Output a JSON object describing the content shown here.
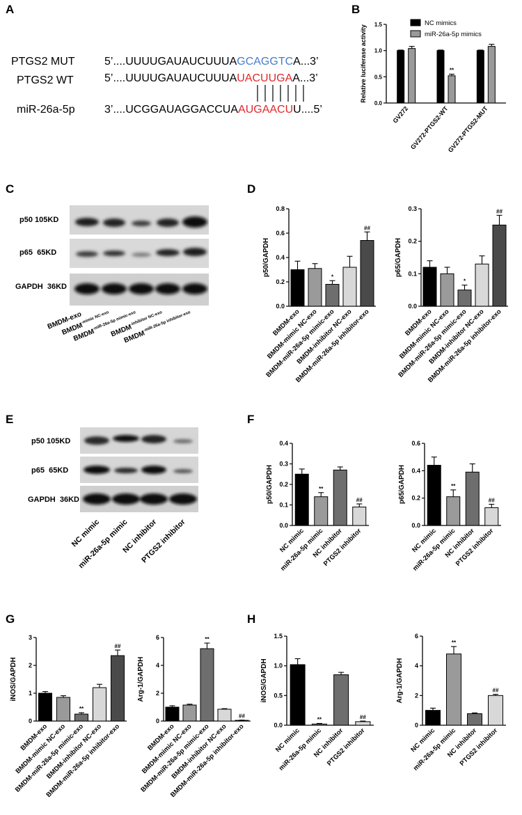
{
  "panels": {
    "A": "A",
    "B": "B",
    "C": "C",
    "D": "D",
    "E": "E",
    "F": "F",
    "G": "G",
    "H": "H"
  },
  "panelA": {
    "rows": [
      {
        "label": "PTGS2 MUT",
        "prefix": "5’....UUUUGAUAUCUUUA",
        "site": "GCAGGTC",
        "suffix": "A...3’",
        "color": "#4a7cc9"
      },
      {
        "label": "PTGS2 WT",
        "prefix": "5’....UUUUGAUAUCUUUA",
        "site": "UACUUGA",
        "suffix": "A...3’",
        "color": "#e0282e"
      },
      {
        "label": "miR-26a-5p",
        "prefix": "3’....UCGGAUAGGACCUA",
        "site": "AUGAACU",
        "suffix": "U....5’",
        "color": "#e0282e"
      }
    ]
  },
  "panelC": {
    "bands": [
      {
        "label": "p50",
        "size": "105KD"
      },
      {
        "label": "p65",
        "size": "65KD"
      },
      {
        "label": "GAPDH",
        "size": "36KD"
      }
    ],
    "lanes": [
      {
        "main": "BMDM-exo",
        "sup": ""
      },
      {
        "main": "BMDM",
        "sup": "-mimic NC-exo"
      },
      {
        "main": "BMDM",
        "sup": "-miR-26a-5p mimic-exo"
      },
      {
        "main": "BMDM",
        "sup": "-inhibitor NC-exo"
      },
      {
        "main": "BMDM",
        "sup": "-miR-26a-5p inhibitor-exo"
      }
    ]
  },
  "panelE": {
    "bands": [
      {
        "label": "p50",
        "size": "105KD"
      },
      {
        "label": "p65",
        "size": "65KD"
      },
      {
        "label": "GAPDH",
        "size": "36KD"
      }
    ],
    "lanes": [
      "NC mimic",
      "miR-26a-5p mimic",
      "NC inhibitor",
      "PTGS2  inhibitor"
    ]
  },
  "chart_data": [
    {
      "id": "B",
      "type": "bar",
      "categories": [
        "GV272",
        "GV272-PTGS2-WT",
        "GV272-PTGS2-MUT"
      ],
      "series": [
        {
          "name": "NC mimics",
          "values": [
            1.0,
            1.0,
            1.0
          ],
          "errors": [
            0.01,
            0.01,
            0.01
          ],
          "color": "#000000"
        },
        {
          "name": "miR-26a-5p mimics",
          "values": [
            1.04,
            0.52,
            1.08
          ],
          "errors": [
            0.04,
            0.03,
            0.04
          ],
          "color": "#9a9a9a"
        }
      ],
      "annotations": [
        {
          "category": 1,
          "series": 1,
          "text": "**"
        }
      ],
      "ylabel": "Relative luciferase activity",
      "ylim": [
        0,
        1.5
      ],
      "yticks": [
        "0.0",
        "0.5",
        "1.0",
        "1.5"
      ],
      "legend": "top-right"
    },
    {
      "id": "D1",
      "type": "bar",
      "categories": [
        "BMDM-exo",
        "BMDM-mimic NC-exo",
        "BMDM-miR-26a-5p mimic-exo",
        "BMDM-inhibitor NC-exo",
        "BMDM-miR-26a-5p inhibitor-exo"
      ],
      "values": [
        0.3,
        0.31,
        0.18,
        0.32,
        0.54
      ],
      "errors": [
        0.07,
        0.04,
        0.03,
        0.09,
        0.07
      ],
      "colors": [
        "#000000",
        "#9a9a9a",
        "#6e6e6e",
        "#d8d8d8",
        "#4a4a4a"
      ],
      "annotations": [
        "",
        "",
        "*",
        "",
        "##"
      ],
      "ylabel": "p50/GAPDH",
      "ylim": [
        0,
        0.8
      ],
      "yticks": [
        "0.0",
        "0.2",
        "0.4",
        "0.6",
        "0.8"
      ]
    },
    {
      "id": "D2",
      "type": "bar",
      "categories": [
        "BMDM-exo",
        "BMDM-mimic NC-exo",
        "BMDM-miR-26a-5p mimic-exo",
        "BMDM-inhibitor NC-exo",
        "BMDM-miR-26a-5p inhibitor-exo"
      ],
      "values": [
        0.12,
        0.1,
        0.05,
        0.13,
        0.25
      ],
      "errors": [
        0.02,
        0.02,
        0.015,
        0.025,
        0.03
      ],
      "colors": [
        "#000000",
        "#9a9a9a",
        "#6e6e6e",
        "#d8d8d8",
        "#4a4a4a"
      ],
      "annotations": [
        "",
        "",
        "*",
        "",
        "##"
      ],
      "ylabel": "p65/GAPDH",
      "ylim": [
        0,
        0.3
      ],
      "yticks": [
        "0.0",
        "0.1",
        "0.2",
        "0.3"
      ]
    },
    {
      "id": "F1",
      "type": "bar",
      "categories": [
        "NC mimic",
        "miR-26a-5p mimic",
        "NC inhibitor",
        "PTGS2 inhibitor"
      ],
      "values": [
        0.25,
        0.14,
        0.27,
        0.09
      ],
      "errors": [
        0.025,
        0.02,
        0.015,
        0.015
      ],
      "colors": [
        "#000000",
        "#9a9a9a",
        "#6e6e6e",
        "#d8d8d8"
      ],
      "annotations": [
        "",
        "**",
        "",
        "##"
      ],
      "ylabel": "p50/GAPDH",
      "ylim": [
        0,
        0.4
      ],
      "yticks": [
        "0.0",
        "0.1",
        "0.2",
        "0.3",
        "0.4"
      ]
    },
    {
      "id": "F2",
      "type": "bar",
      "categories": [
        "NC mimic",
        "miR-26a-5p mimic",
        "NC inhibitor",
        "PTGS2 inhibitor"
      ],
      "values": [
        0.44,
        0.21,
        0.39,
        0.13
      ],
      "errors": [
        0.06,
        0.05,
        0.06,
        0.025
      ],
      "colors": [
        "#000000",
        "#9a9a9a",
        "#6e6e6e",
        "#d8d8d8"
      ],
      "annotations": [
        "",
        "**",
        "",
        "##"
      ],
      "ylabel": "p65/GAPDH",
      "ylim": [
        0,
        0.6
      ],
      "yticks": [
        "0.0",
        "0.2",
        "0.4",
        "0.6"
      ]
    },
    {
      "id": "G1",
      "type": "bar",
      "categories": [
        "BMDM-exo",
        "BMDM-mimic NC-exo",
        "BMDM-miR-26a-5p mimic-exo",
        "BMDM-inhibitor NC-exo",
        "BMDM-miR-26a-5p inhibitor-exo"
      ],
      "values": [
        1.0,
        0.85,
        0.25,
        1.2,
        2.35
      ],
      "errors": [
        0.06,
        0.06,
        0.05,
        0.12,
        0.2
      ],
      "colors": [
        "#000000",
        "#9a9a9a",
        "#6e6e6e",
        "#d8d8d8",
        "#4a4a4a"
      ],
      "annotations": [
        "",
        "",
        "**",
        "",
        "##"
      ],
      "ylabel": "iNOS/GAPDH",
      "ylim": [
        0,
        3
      ],
      "yticks": [
        "0",
        "1",
        "2",
        "3"
      ]
    },
    {
      "id": "G2",
      "type": "bar",
      "categories": [
        "BMDM-exo",
        "BMDM-mimic NC-exo",
        "BMDM-miR-26a-5p mimic-exo",
        "BMDM-inhibitor NC-exo",
        "BMDM-miR-26a-5p inhibitor-exo"
      ],
      "values": [
        1.0,
        1.15,
        5.2,
        0.85,
        0.05
      ],
      "errors": [
        0.1,
        0.06,
        0.4,
        0.04,
        0.02
      ],
      "colors": [
        "#000000",
        "#9a9a9a",
        "#6e6e6e",
        "#d8d8d8",
        "#4a4a4a"
      ],
      "annotations": [
        "",
        "",
        "**",
        "",
        "##"
      ],
      "ylabel": "Arg-1/GAPDH",
      "ylim": [
        0,
        6
      ],
      "yticks": [
        "0",
        "2",
        "4",
        "6"
      ]
    },
    {
      "id": "H1",
      "type": "bar",
      "categories": [
        "NC mimic",
        "miR-26a-5p mimic",
        "NC inhibitor",
        "PTGS2 inhibitor"
      ],
      "values": [
        1.02,
        0.02,
        0.85,
        0.06
      ],
      "errors": [
        0.1,
        0.01,
        0.04,
        0.01
      ],
      "colors": [
        "#000000",
        "#9a9a9a",
        "#6e6e6e",
        "#d8d8d8"
      ],
      "annotations": [
        "",
        "**",
        "",
        "##"
      ],
      "ylabel": "iNOS/GAPDH",
      "ylim": [
        0,
        1.5
      ],
      "yticks": [
        "0.0",
        "0.5",
        "1.0",
        "1.5"
      ]
    },
    {
      "id": "H2",
      "type": "bar",
      "categories": [
        "NC mimic",
        "miR-26a-5p mimic",
        "NC inhibitor",
        "PTGS2 inhibitor"
      ],
      "values": [
        1.0,
        4.8,
        0.78,
        2.0
      ],
      "errors": [
        0.15,
        0.5,
        0.05,
        0.08
      ],
      "colors": [
        "#000000",
        "#9a9a9a",
        "#6e6e6e",
        "#d8d8d8"
      ],
      "annotations": [
        "",
        "**",
        "",
        "##"
      ],
      "ylabel": "Arg-1/GAPDH",
      "ylim": [
        0,
        6
      ],
      "yticks": [
        "0",
        "2",
        "4",
        "6"
      ]
    }
  ]
}
